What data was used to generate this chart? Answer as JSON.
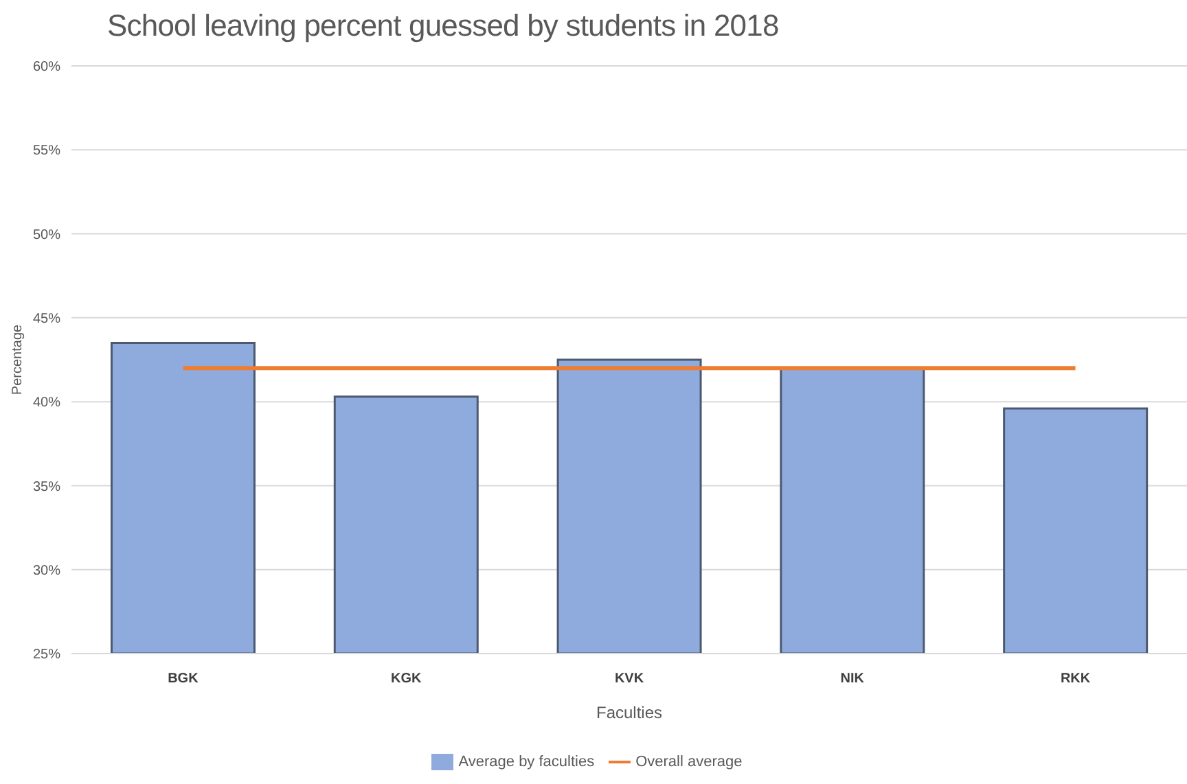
{
  "chart_data": {
    "type": "bar",
    "title": "School leaving percent guessed by students in 2018",
    "xlabel": "Faculties",
    "ylabel": "Percentage",
    "categories": [
      "BGK",
      "KGK",
      "KVK",
      "NIK",
      "RKK"
    ],
    "series": [
      {
        "name": "Average by faculties",
        "color": "#8faadc",
        "values": [
          43.5,
          40.3,
          42.5,
          42.0,
          39.6
        ]
      },
      {
        "name": "Overall average",
        "type": "line",
        "color": "#ed7d31",
        "values": [
          42,
          42,
          42,
          42,
          42
        ]
      }
    ],
    "ylim": [
      25,
      60
    ],
    "yticks": [
      {
        "value": 25,
        "label": "25%"
      },
      {
        "value": 30,
        "label": "30%"
      },
      {
        "value": 35,
        "label": "35%"
      },
      {
        "value": 40,
        "label": "40%"
      },
      {
        "value": 45,
        "label": "45%"
      },
      {
        "value": 50,
        "label": "50%"
      },
      {
        "value": 55,
        "label": "55%"
      },
      {
        "value": 60,
        "label": "60%"
      }
    ],
    "grid": "y",
    "legend": "bottom",
    "marker": "none"
  }
}
